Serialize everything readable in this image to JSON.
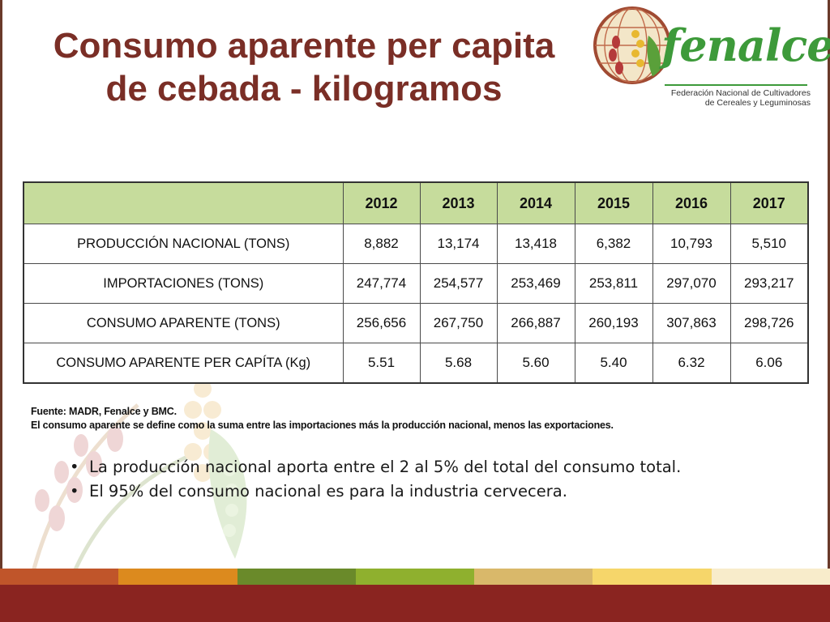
{
  "title": {
    "line1": "Consumo aparente per capita",
    "line2": "de cebada - kilogramos"
  },
  "logo": {
    "name": "fenalce",
    "subtitle_line1": "Federación Nacional de Cultivadores",
    "subtitle_line2": "de Cereales y Leguminosas",
    "icon": "globe-grain-icon"
  },
  "table": {
    "corner": "",
    "years": [
      "2012",
      "2013",
      "2014",
      "2015",
      "2016",
      "2017"
    ],
    "rows": [
      {
        "label": "PRODUCCIÓN NACIONAL (TONS)",
        "values": [
          "8,882",
          "13,174",
          "13,418",
          "6,382",
          "10,793",
          "5,510"
        ]
      },
      {
        "label": "IMPORTACIONES (TONS)",
        "values": [
          "247,774",
          "254,577",
          "253,469",
          "253,811",
          "297,070",
          "293,217"
        ]
      },
      {
        "label": "CONSUMO APARENTE (TONS)",
        "values": [
          "256,656",
          "267,750",
          "266,887",
          "260,193",
          "307,863",
          "298,726"
        ]
      },
      {
        "label": "CONSUMO APARENTE PER CAPÍTA (Kg)",
        "values": [
          "5.51",
          "5.68",
          "5.60",
          "5.40",
          "6.32",
          "6.06"
        ]
      }
    ]
  },
  "notes": {
    "source": "Fuente: MADR, Fenalce y BMC.",
    "definition": "El consumo aparente se define como la suma entre las importaciones más la producción nacional, menos las exportaciones."
  },
  "bullets": [
    "La producción nacional aporta entre el 2 al 5% del total del consumo total.",
    "El 95% del consumo nacional es para la industria cervecera."
  ],
  "colors": {
    "title": "#7a2e26",
    "header_fill": "#c6dc9c",
    "logo_green": "#3d9a3a",
    "bottom_bar": "#8a2420",
    "band": [
      "#c0552a",
      "#dc8a1e",
      "#6a8a2a",
      "#8fb02e",
      "#d9b86a",
      "#f6d66a",
      "#f8eccb"
    ]
  }
}
